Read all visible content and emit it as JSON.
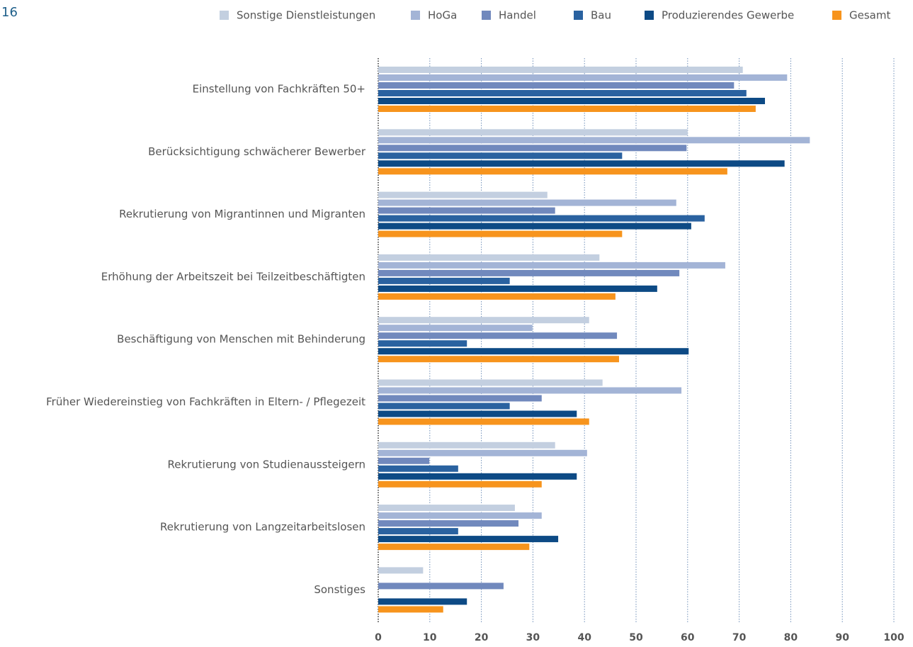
{
  "page_number": "16",
  "chart_data": {
    "type": "barh",
    "categories": [
      "Einstellung von Fachkräften 50+",
      "Berücksichtigung schwächerer Bewerber",
      "Rekrutierung von Migrantinnen und Migranten",
      "Erhöhung der Arbeitszeit bei Teilzeitbeschäftigten",
      "Beschäftigung von Menschen mit Behinderung",
      "Früher Wiedereinstieg von Fachkräften in Eltern- / Pflegezeit",
      "Rekrutierung von Studienaussteigern",
      "Rekrutierung von Langzeitarbeitslosen",
      "Sonstiges"
    ],
    "series": [
      {
        "name": "Sonstige Dienstleistungen",
        "color": "#c3cfe0",
        "values": [
          70.7,
          60,
          32.8,
          42.9,
          40.9,
          43.5,
          34.3,
          26.5,
          8.7
        ]
      },
      {
        "name": "HoGa",
        "color": "#a3b4d6",
        "values": [
          79.3,
          83.7,
          57.8,
          67.3,
          29.9,
          58.8,
          40.5,
          31.7,
          null
        ]
      },
      {
        "name": "Handel",
        "color": "#7189bd",
        "values": [
          69,
          59.8,
          34.3,
          58.4,
          46.3,
          31.7,
          9.9,
          27.2,
          24.3
        ]
      },
      {
        "name": "Bau",
        "color": "#2a62a0",
        "values": [
          71.4,
          47.3,
          63.3,
          25.5,
          17.2,
          25.5,
          15.5,
          15.5,
          null
        ]
      },
      {
        "name": "Produzierendes Gewerbe",
        "color": "#0d4a85",
        "values": [
          75,
          78.8,
          60.7,
          54.1,
          60.2,
          38.5,
          38.5,
          34.9,
          17.2
        ]
      },
      {
        "name": "Gesamt",
        "color": "#f7941d",
        "values": [
          73.2,
          67.7,
          47.3,
          46,
          46.7,
          40.9,
          31.7,
          29.3,
          12.6
        ]
      }
    ],
    "xlim": [
      0,
      100
    ],
    "xticks": [
      0,
      10,
      20,
      30,
      40,
      50,
      60,
      70,
      80,
      90,
      100
    ],
    "grid": true
  }
}
